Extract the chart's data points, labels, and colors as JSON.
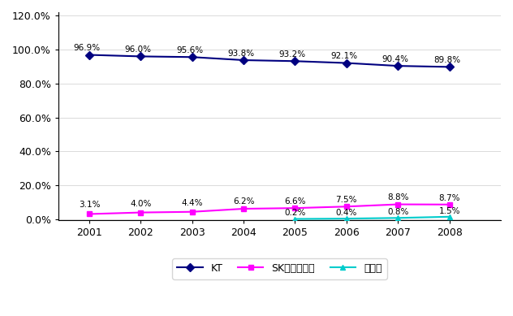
{
  "years": [
    2001,
    2002,
    2003,
    2004,
    2005,
    2006,
    2007,
    2008
  ],
  "kt": [
    0.969,
    0.96,
    0.956,
    0.938,
    0.932,
    0.921,
    0.904,
    0.898
  ],
  "sk": [
    0.031,
    0.04,
    0.044,
    0.062,
    0.066,
    0.075,
    0.088,
    0.087
  ],
  "dacom": [
    null,
    null,
    null,
    null,
    0.002,
    0.004,
    0.008,
    0.015
  ],
  "kt_labels": [
    "96.9%",
    "96.0%",
    "95.6%",
    "93.8%",
    "93.2%",
    "92.1%",
    "90.4%",
    "89.8%"
  ],
  "sk_labels": [
    "3.1%",
    "4.0%",
    "4.4%",
    "6.2%",
    "6.6%",
    "7.5%",
    "8.8%",
    "8.7%"
  ],
  "dacom_labels": [
    null,
    null,
    null,
    null,
    "0.2%",
    "0.4%",
    "0.8%",
    "1.5%"
  ],
  "kt_color": "#000080",
  "sk_color": "#FF00FF",
  "dacom_color": "#00CCCC",
  "kt_label": "KT",
  "sk_label": "SK브로드밴드",
  "dacom_label": "데이콤",
  "background_color": "#FFFFFF",
  "plot_bg_color": "#FFFFFF"
}
